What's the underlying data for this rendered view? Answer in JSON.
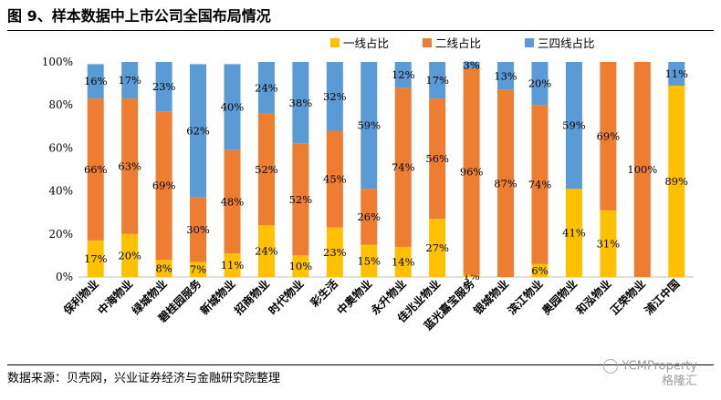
{
  "title": "图 9、样本数据中上市公司全国布局情况",
  "source": "数据来源：贝壳网，兴业证券经济与金融研究院整理",
  "watermark": {
    "brand": "YCMProperty",
    "sub": "格隆汇",
    "logo_icon": "wechat-logo-icon"
  },
  "colors": {
    "tier1": "#FFC000",
    "tier2": "#ED7D31",
    "tier34": "#5B9BD5"
  },
  "chart_data": {
    "type": "bar",
    "stacked": true,
    "percent": true,
    "legend_position": "top-right",
    "grid": false,
    "ylim": [
      0,
      100
    ],
    "yticks": [
      "0%",
      "20%",
      "40%",
      "60%",
      "80%",
      "100%"
    ],
    "categories": [
      "保利物业",
      "中海物业",
      "绿城物业",
      "碧桂园服务",
      "新城物业",
      "招商物业",
      "时代物业",
      "彩生活",
      "中奥物业",
      "永升物业",
      "佳兆业物业",
      "蓝光嘉宝服务",
      "银城物业",
      "滨江物业",
      "奥园物业",
      "和泓物业",
      "正荣物业",
      "浦江中国"
    ],
    "series": [
      {
        "name": "一线占比",
        "color": "#FFC000",
        "values": [
          17,
          20,
          8,
          7,
          11,
          24,
          10,
          23,
          15,
          14,
          27,
          1,
          0,
          6,
          41,
          31,
          0,
          89
        ],
        "labels": [
          "17%",
          "20%",
          "8%",
          "7%",
          "11%",
          "24%",
          "10%",
          "23%",
          "15%",
          "14%",
          "27%",
          "1%",
          "",
          "6%",
          "41%",
          "31%",
          "",
          "89%"
        ]
      },
      {
        "name": "二线占比",
        "color": "#ED7D31",
        "values": [
          66,
          63,
          69,
          30,
          48,
          52,
          52,
          45,
          26,
          74,
          56,
          96,
          87,
          74,
          0,
          69,
          100,
          0
        ],
        "labels": [
          "66%",
          "63%",
          "69%",
          "30%",
          "48%",
          "52%",
          "52%",
          "45%",
          "26%",
          "74%",
          "56%",
          "96%",
          "87%",
          "74%",
          "",
          "69%",
          "100%",
          ""
        ]
      },
      {
        "name": "三四线占比",
        "color": "#5B9BD5",
        "values": [
          16,
          17,
          23,
          62,
          40,
          24,
          38,
          32,
          59,
          12,
          17,
          3,
          13,
          20,
          59,
          0,
          0,
          11
        ],
        "labels": [
          "16%",
          "17%",
          "23%",
          "62%",
          "40%",
          "24%",
          "38%",
          "32%",
          "59%",
          "12%",
          "17%",
          "3%",
          "13%",
          "20%",
          "59%",
          "",
          "",
          "11%"
        ]
      }
    ]
  }
}
